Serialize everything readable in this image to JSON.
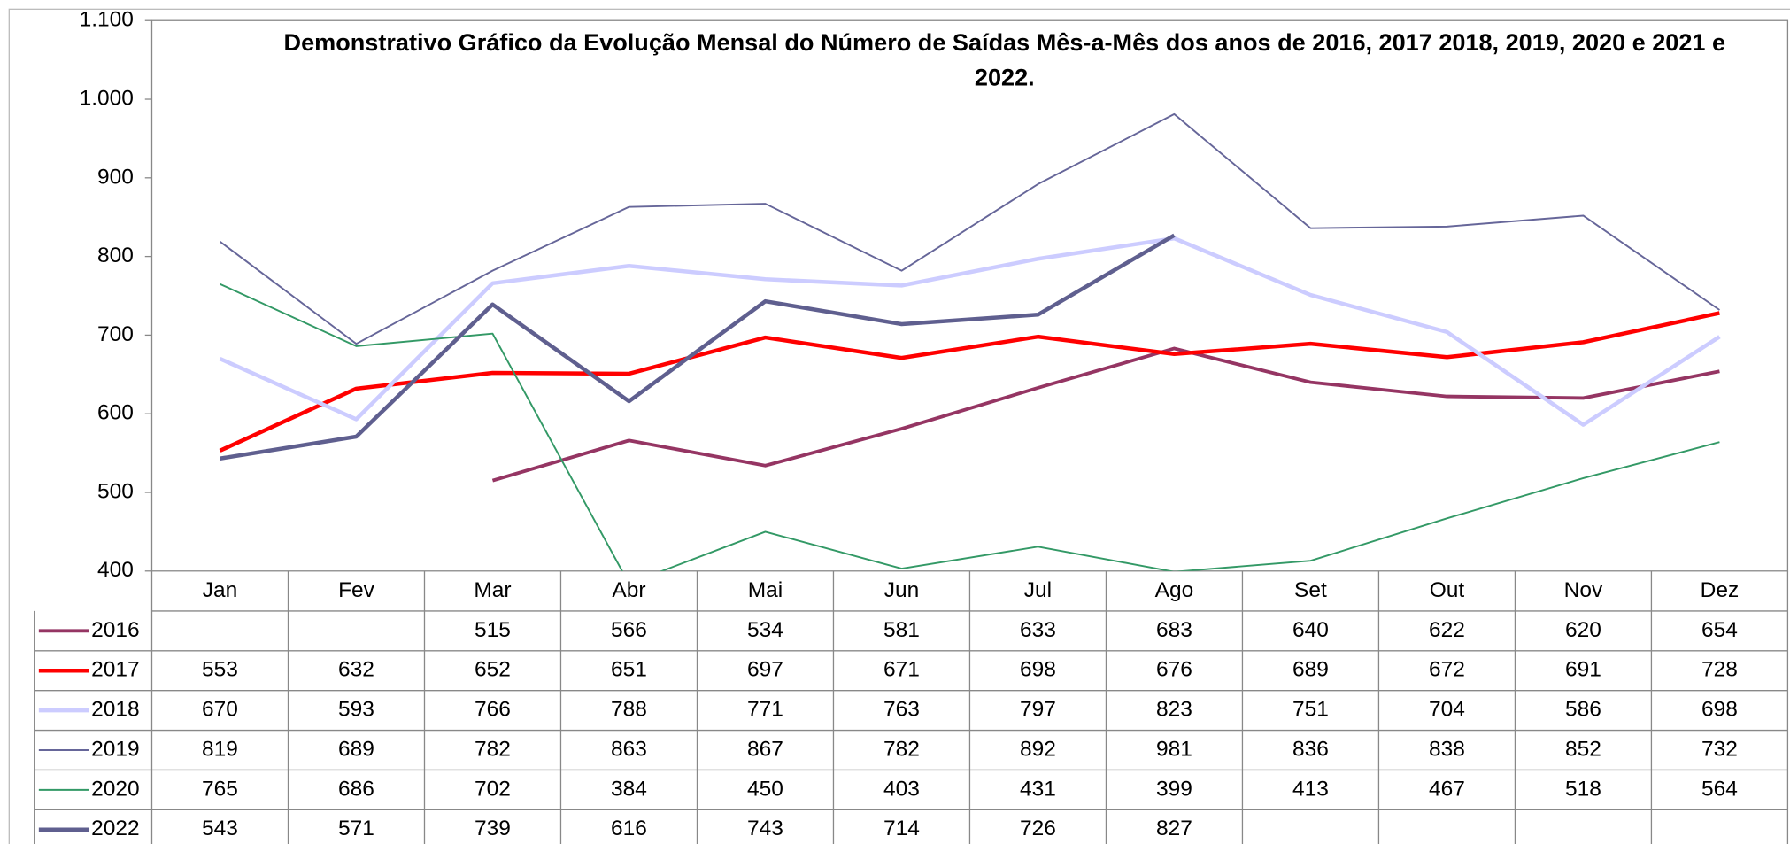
{
  "chart_data": {
    "type": "line",
    "title": "Demonstrativo Gráfico da Evolução Mensal do Número de Saídas Mês-a-Mês dos anos de  2016, 2017 2018, 2019, 2020 e 2021 e 2022.",
    "categories": [
      "Jan",
      "Fev",
      "Mar",
      "Abr",
      "Mai",
      "Jun",
      "Jul",
      "Ago",
      "Set",
      "Out",
      "Nov",
      "Dez"
    ],
    "series": [
      {
        "name": "2016",
        "color": "#953563",
        "values": [
          null,
          null,
          515,
          566,
          534,
          581,
          633,
          683,
          640,
          622,
          620,
          654
        ]
      },
      {
        "name": "2017",
        "color": "#ff0000",
        "values": [
          553,
          632,
          652,
          651,
          697,
          671,
          698,
          676,
          689,
          672,
          691,
          728
        ]
      },
      {
        "name": "2018",
        "color": "#ccccff",
        "values": [
          670,
          593,
          766,
          788,
          771,
          763,
          797,
          823,
          751,
          704,
          586,
          698
        ]
      },
      {
        "name": "2019",
        "color": "#666699",
        "values": [
          819,
          689,
          782,
          863,
          867,
          782,
          892,
          981,
          836,
          838,
          852,
          732
        ]
      },
      {
        "name": "2020",
        "color": "#339966",
        "values": [
          765,
          686,
          702,
          384,
          450,
          403,
          431,
          399,
          413,
          467,
          518,
          564
        ]
      },
      {
        "name": "2022",
        "color": "#5f5f8f",
        "values": [
          543,
          571,
          739,
          616,
          743,
          714,
          726,
          827,
          null,
          null,
          null,
          null
        ]
      }
    ],
    "ylim": [
      400,
      1100
    ],
    "yticks": [
      400,
      500,
      600,
      700,
      800,
      900,
      {
        "value": 1000,
        "label": "1.000"
      },
      {
        "value": 1100,
        "label": "1.100"
      }
    ],
    "grid": false,
    "legend": "table"
  }
}
